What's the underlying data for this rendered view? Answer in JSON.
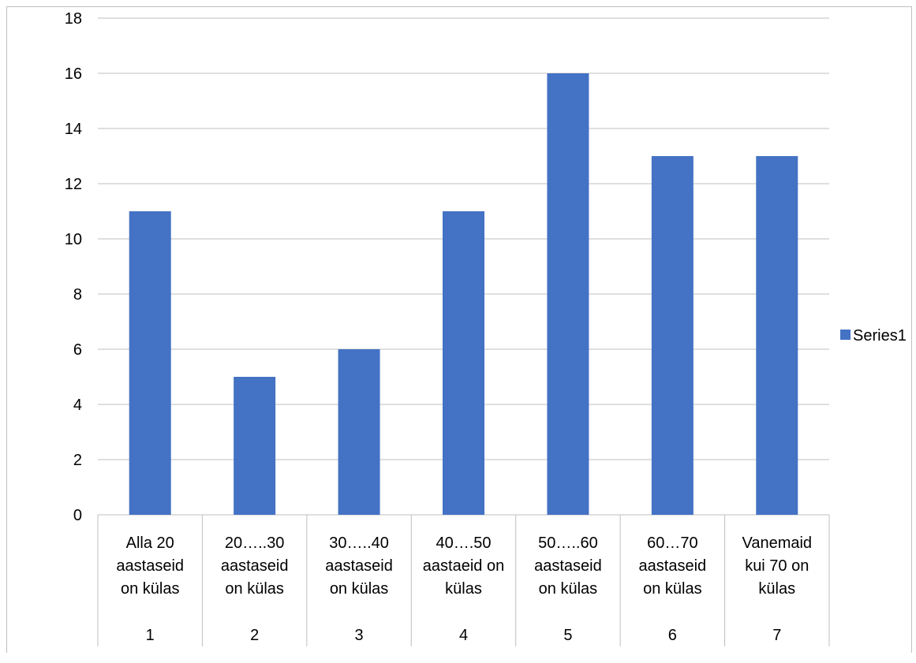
{
  "chart_data": {
    "type": "bar",
    "categories": [
      {
        "lines": [
          "Alla 20",
          "aastaseid",
          "on külas"
        ],
        "index": "1"
      },
      {
        "lines": [
          "20…..30",
          "aastaseid",
          "on külas"
        ],
        "index": "2"
      },
      {
        "lines": [
          "30…..40",
          "aastaseid",
          "on külas"
        ],
        "index": "3"
      },
      {
        "lines": [
          "40….50",
          "aastaeid  on",
          "külas"
        ],
        "index": "4"
      },
      {
        "lines": [
          "50…..60",
          "aastaseid",
          "on külas"
        ],
        "index": "5"
      },
      {
        "lines": [
          "60…70",
          "aastaseid",
          "on külas"
        ],
        "index": "6"
      },
      {
        "lines": [
          "Vanemaid",
          "kui 70 on",
          "külas"
        ],
        "index": "7"
      }
    ],
    "series": [
      {
        "name": "Series1",
        "values": [
          11,
          5,
          6,
          11,
          16,
          13,
          13
        ]
      }
    ],
    "yticks": [
      "0",
      "2",
      "4",
      "6",
      "8",
      "10",
      "12",
      "14",
      "16",
      "18"
    ],
    "ylim": [
      0,
      18
    ],
    "grid": true,
    "legend_position": "right",
    "title": "",
    "xlabel": "",
    "ylabel": ""
  },
  "colors": {
    "bar": "#4472C4",
    "grid": "#bfbfbf"
  }
}
